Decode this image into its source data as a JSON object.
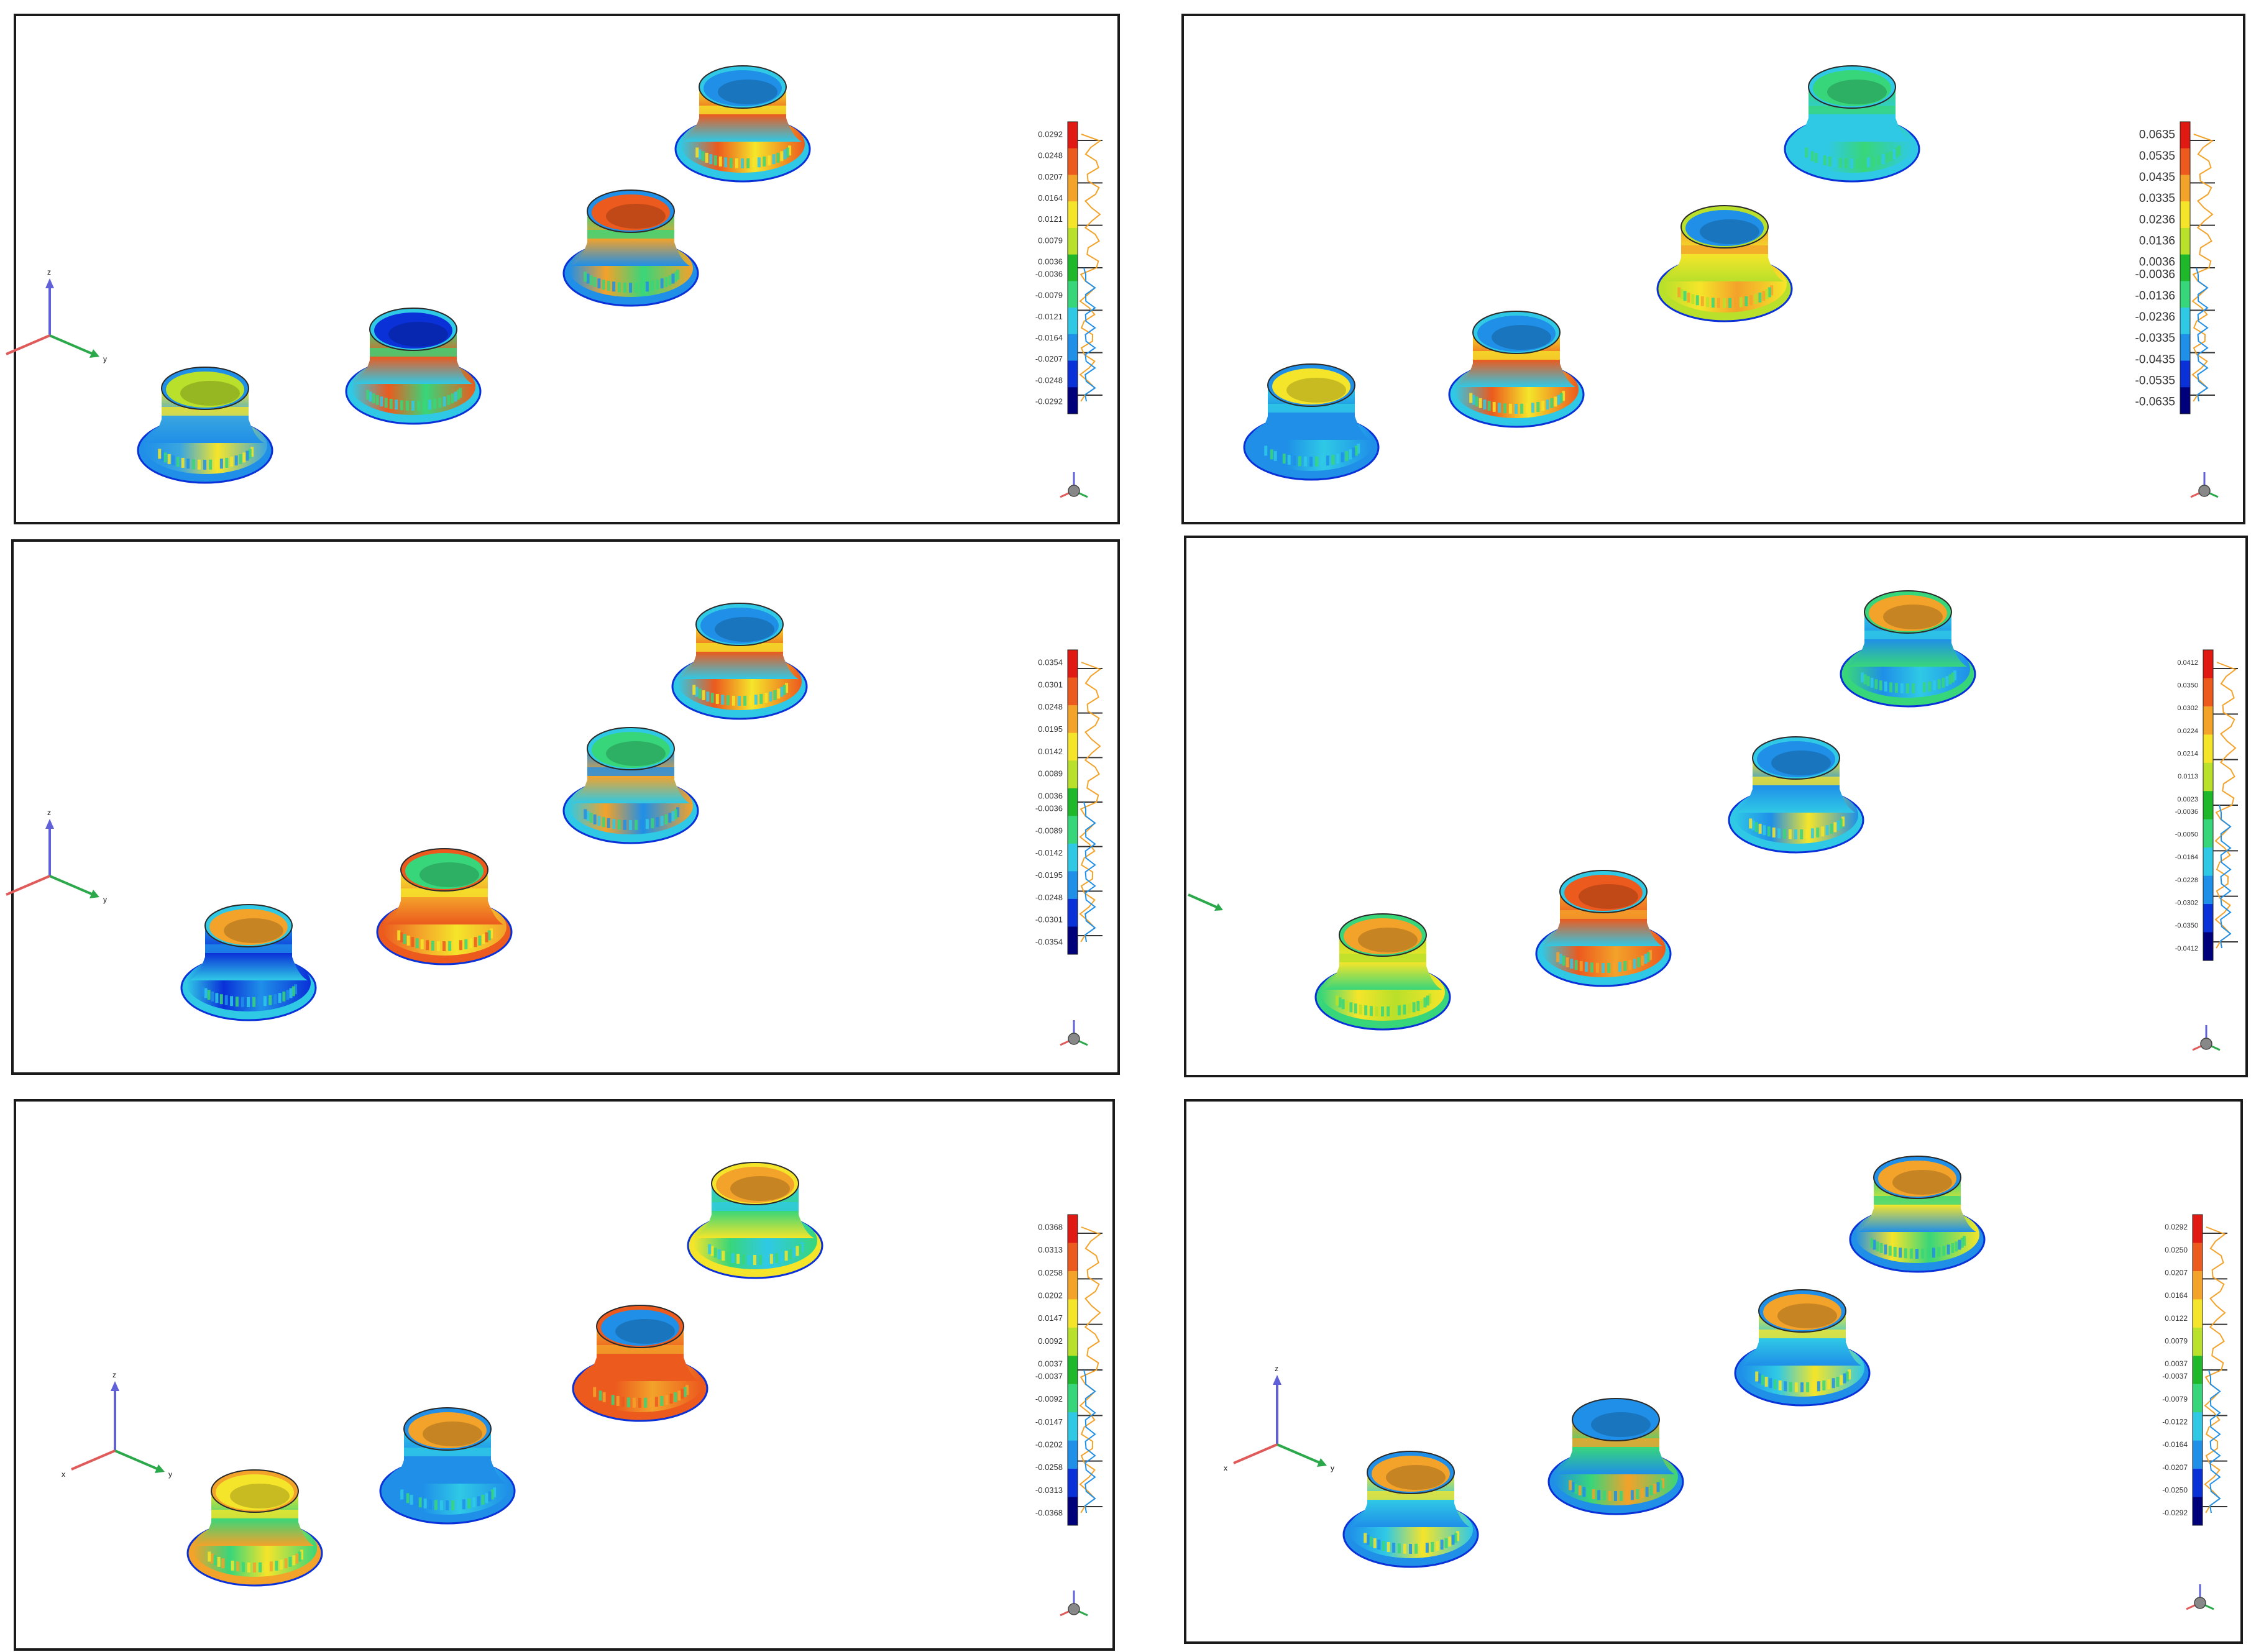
{
  "colors": {
    "border": "#1a1a1a",
    "scale": [
      "#00007a",
      "#0a30d8",
      "#1f8fe8",
      "#2fc9e6",
      "#38d67a",
      "#1fb82a",
      "#b9e02a",
      "#f5e52a",
      "#f3a22a",
      "#ec5a1e",
      "#e01a12"
    ],
    "axis_x": "#e05a5a",
    "axis_y": "#2aa84a",
    "axis_z": "#6060d8"
  },
  "panels": [
    {
      "id": "p1",
      "legend": [
        "0.0292",
        "0.0248",
        "0.0207",
        "0.0164",
        "0.0121",
        "0.0079",
        "0.0036",
        "-0.0036",
        "-0.0079",
        "-0.0121",
        "-0.0164",
        "-0.0207",
        "-0.0248",
        "-0.0292"
      ],
      "axes": {
        "z": "z",
        "y": "y"
      },
      "parts": [
        {
          "id": "a",
          "body": "#3aa6e0",
          "band": "#f5e52a",
          "rim": "#1f8fe8",
          "inner": "#b9e02a"
        },
        {
          "id": "b",
          "body": "#ec5a1e",
          "band": "#38d67a",
          "rim": "#2fc9e6",
          "inner": "#0a30d8"
        },
        {
          "id": "c",
          "body": "#f3a22a",
          "band": "#38d67a",
          "rim": "#1f8fe8",
          "inner": "#ec5a1e"
        },
        {
          "id": "d",
          "body": "#ec5a1e",
          "band": "#f5e52a",
          "rim": "#2fc9e6",
          "inner": "#1f8fe8"
        }
      ]
    },
    {
      "id": "p2",
      "legend": [
        "0.0635",
        "0.0535",
        "0.0435",
        "0.0335",
        "0.0236",
        "0.0136",
        "0.0036",
        "-0.0036",
        "-0.0136",
        "-0.0236",
        "-0.0335",
        "-0.0435",
        "-0.0535",
        "-0.0635"
      ],
      "axes": {},
      "parts": [
        {
          "id": "a",
          "body": "#1f8fe8",
          "band": "#2fc9e6",
          "rim": "#1f8fe8",
          "inner": "#f5e52a"
        },
        {
          "id": "b",
          "body": "#ec5a1e",
          "band": "#f5e52a",
          "rim": "#2fc9e6",
          "inner": "#1f8fe8"
        },
        {
          "id": "c",
          "body": "#f5e52a",
          "band": "#f3a22a",
          "rim": "#b9e02a",
          "inner": "#1f8fe8"
        },
        {
          "id": "d",
          "body": "#2fc9e6",
          "band": "#38d67a",
          "rim": "#2fc9e6",
          "inner": "#38d67a"
        }
      ]
    },
    {
      "id": "p3",
      "legend": [
        "0.0354",
        "0.0301",
        "0.0248",
        "0.0195",
        "0.0142",
        "0.0089",
        "0.0036",
        "-0.0036",
        "-0.0089",
        "-0.0142",
        "-0.0195",
        "-0.0248",
        "-0.0301",
        "-0.0354"
      ],
      "axes": {
        "z": "z",
        "y": "y"
      },
      "parts": [
        {
          "id": "a",
          "body": "#0a30d8",
          "band": "#1f8fe8",
          "rim": "#2fc9e6",
          "inner": "#f3a22a"
        },
        {
          "id": "b",
          "body": "#f3a22a",
          "band": "#f5e52a",
          "rim": "#ec5a1e",
          "inner": "#38d67a"
        },
        {
          "id": "c",
          "body": "#f3a22a",
          "band": "#1f8fe8",
          "rim": "#2fc9e6",
          "inner": "#38d67a"
        },
        {
          "id": "d",
          "body": "#ec5a1e",
          "band": "#f5e52a",
          "rim": "#2fc9e6",
          "inner": "#1f8fe8"
        }
      ]
    },
    {
      "id": "p4",
      "legend": [
        "0.0412",
        "0.0350",
        "0.0302",
        "0.0224",
        "0.0214",
        "0.0113",
        "0.0023",
        "-0.0036",
        "-0.0050",
        "-0.0164",
        "-0.0228",
        "-0.0302",
        "-0.0350",
        "-0.0412"
      ],
      "axes": {},
      "parts": [
        {
          "id": "a",
          "body": "#f5e52a",
          "band": "#b9e02a",
          "rim": "#38d67a",
          "inner": "#f3a22a"
        },
        {
          "id": "b",
          "body": "#ec5a1e",
          "band": "#f3a22a",
          "rim": "#2fc9e6",
          "inner": "#ec5a1e"
        },
        {
          "id": "c",
          "body": "#1f8fe8",
          "band": "#f5e52a",
          "rim": "#2fc9e6",
          "inner": "#1f8fe8"
        },
        {
          "id": "d",
          "body": "#1f8fe8",
          "band": "#2fc9e6",
          "rim": "#38d67a",
          "inner": "#f3a22a"
        }
      ]
    },
    {
      "id": "p5",
      "legend": [
        "0.0368",
        "0.0313",
        "0.0258",
        "0.0202",
        "0.0147",
        "0.0092",
        "0.0037",
        "-0.0037",
        "-0.0092",
        "-0.0147",
        "-0.0202",
        "-0.0258",
        "-0.0313",
        "-0.0368"
      ],
      "axes": {
        "x": "x",
        "y": "y",
        "z": "z"
      },
      "parts": [
        {
          "id": "a",
          "body": "#38d67a",
          "band": "#f5e52a",
          "rim": "#f3a22a",
          "inner": "#f5e52a"
        },
        {
          "id": "b",
          "body": "#1f8fe8",
          "band": "#2fc9e6",
          "rim": "#1f8fe8",
          "inner": "#f3a22a"
        },
        {
          "id": "c",
          "body": "#ec5a1e",
          "band": "#f3a22a",
          "rim": "#ec5a1e",
          "inner": "#1f8fe8"
        },
        {
          "id": "d",
          "body": "#38d67a",
          "band": "#2fc9e6",
          "rim": "#f5e52a",
          "inner": "#f3a22a"
        }
      ]
    },
    {
      "id": "p6",
      "legend": [
        "0.0292",
        "0.0250",
        "0.0207",
        "0.0164",
        "0.0122",
        "0.0079",
        "0.0037",
        "-0.0037",
        "-0.0079",
        "-0.0122",
        "-0.0164",
        "-0.0207",
        "-0.0250",
        "-0.0292"
      ],
      "axes": {
        "x": "x",
        "y": "y",
        "z": "z"
      },
      "parts": [
        {
          "id": "a",
          "body": "#2fc9e6",
          "band": "#f5e52a",
          "rim": "#1f8fe8",
          "inner": "#f3a22a"
        },
        {
          "id": "b",
          "body": "#38d67a",
          "band": "#f3a22a",
          "rim": "#1f8fe8",
          "inner": "#1f8fe8"
        },
        {
          "id": "c",
          "body": "#2fc9e6",
          "band": "#f5e52a",
          "rim": "#1f8fe8",
          "inner": "#f3a22a"
        },
        {
          "id": "d",
          "body": "#f5e52a",
          "band": "#38d67a",
          "rim": "#1f8fe8",
          "inner": "#f3a22a"
        }
      ]
    }
  ]
}
